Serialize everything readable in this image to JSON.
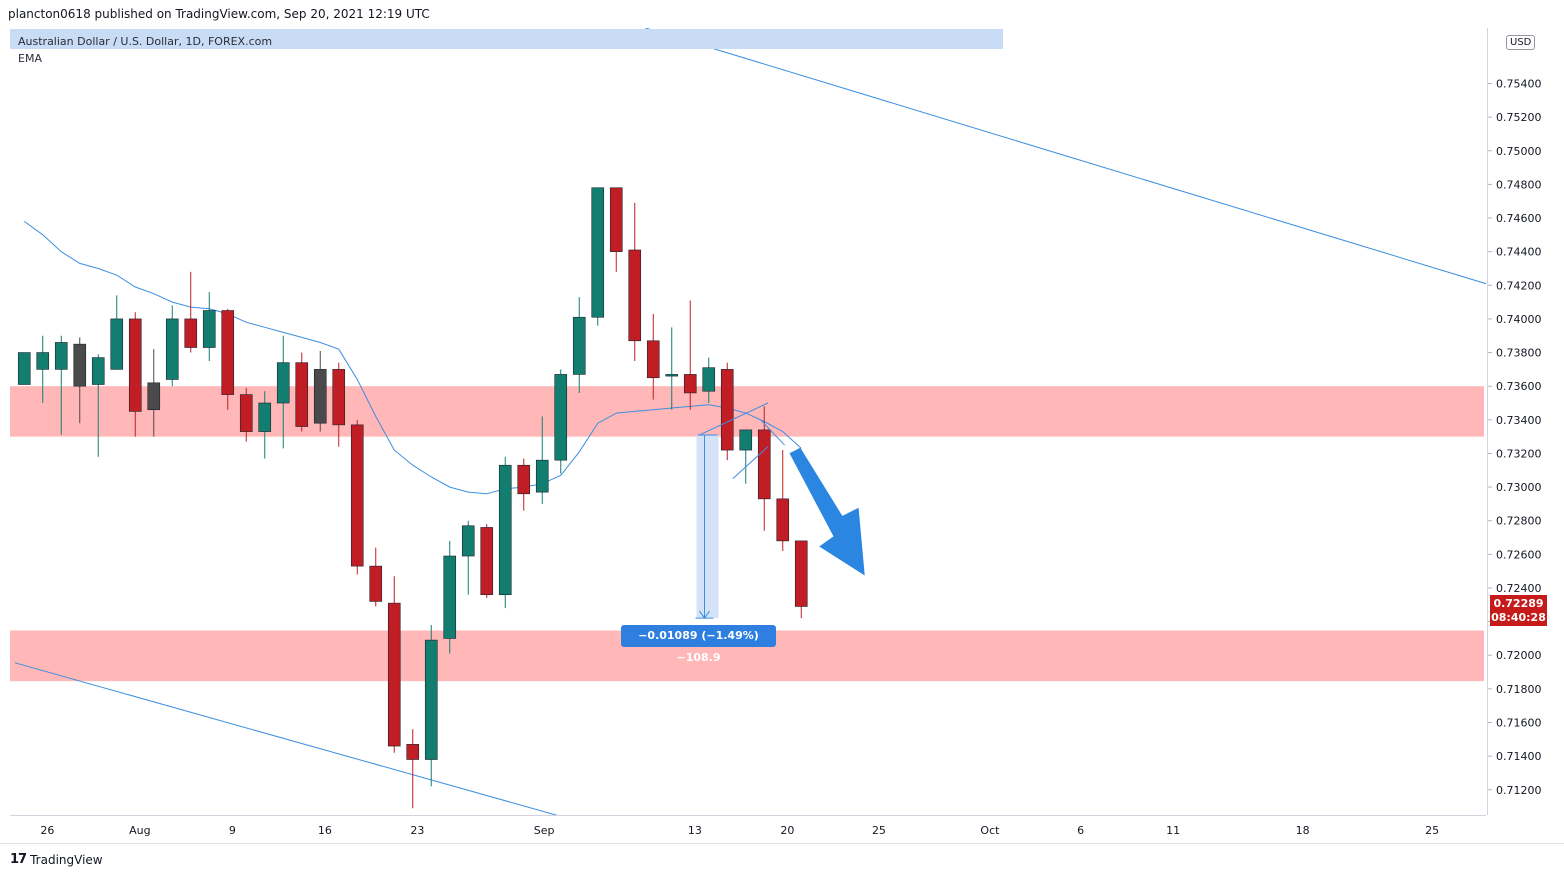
{
  "header": {
    "published_line": "plancton0618 published on TradingView.com, Sep 20, 2021 12:19 UTC"
  },
  "legend": {
    "symbol": "Australian Dollar / U.S. Dollar, 1D, FOREX.com",
    "indicator": "EMA"
  },
  "price_axis": {
    "currency": "USD",
    "last_price": "0.72289",
    "countdown": "08:40:28"
  },
  "measure_label": "−0.01089 (−1.49%) −108.9",
  "footer": {
    "brand": "TradingView"
  },
  "colors": {
    "up": "#127e70",
    "down": "#c01d24",
    "neutral": "#4a4a4a",
    "ema": "#3d8ee0",
    "zone": "#ffb7b7",
    "arrow": "#2a86e0"
  },
  "chart_data": {
    "type": "candlestick",
    "title": "Australian Dollar / U.S. Dollar, 1D, FOREX.com",
    "ylim": [
      0.7105,
      0.7573
    ],
    "y_ticks": [
      "0.71200",
      "0.71400",
      "0.71600",
      "0.71800",
      "0.72000",
      "0.72200",
      "0.72400",
      "0.72600",
      "0.72800",
      "0.73000",
      "0.73200",
      "0.73400",
      "0.73600",
      "0.73800",
      "0.74000",
      "0.74200",
      "0.74400",
      "0.74600",
      "0.74800",
      "0.75000",
      "0.75200",
      "0.75400"
    ],
    "x_ticks": [
      {
        "label": "26",
        "slot": 1.75
      },
      {
        "label": "Aug",
        "slot": 6.75
      },
      {
        "label": "9",
        "slot": 11.75
      },
      {
        "label": "16",
        "slot": 16.75
      },
      {
        "label": "23",
        "slot": 21.75
      },
      {
        "label": "Sep",
        "slot": 28.6
      },
      {
        "label": "13",
        "slot": 36.75
      },
      {
        "label": "20",
        "slot": 41.75
      },
      {
        "label": "25",
        "slot": 46.7
      },
      {
        "label": "Oct",
        "slot": 52.7
      },
      {
        "label": "6",
        "slot": 57.6
      },
      {
        "label": "11",
        "slot": 62.6
      },
      {
        "label": "18",
        "slot": 69.6
      },
      {
        "label": "25",
        "slot": 76.6
      }
    ],
    "candles": [
      {
        "o": 0.7361,
        "h": 0.738,
        "l": 0.7361,
        "c": 0.738
      },
      {
        "o": 0.737,
        "h": 0.739,
        "l": 0.735,
        "c": 0.738
      },
      {
        "o": 0.737,
        "h": 0.739,
        "l": 0.7331,
        "c": 0.7386
      },
      {
        "o": 0.7385,
        "h": 0.7389,
        "l": 0.7338,
        "c": 0.736
      },
      {
        "o": 0.7361,
        "h": 0.7379,
        "l": 0.7318,
        "c": 0.7377
      },
      {
        "o": 0.737,
        "h": 0.7414,
        "l": 0.737,
        "c": 0.74
      },
      {
        "o": 0.74,
        "h": 0.7404,
        "l": 0.733,
        "c": 0.7345
      },
      {
        "o": 0.7346,
        "h": 0.7382,
        "l": 0.733,
        "c": 0.7362
      },
      {
        "o": 0.7364,
        "h": 0.7408,
        "l": 0.736,
        "c": 0.74
      },
      {
        "o": 0.74,
        "h": 0.7428,
        "l": 0.738,
        "c": 0.7383
      },
      {
        "o": 0.7383,
        "h": 0.7416,
        "l": 0.7375,
        "c": 0.7405
      },
      {
        "o": 0.7405,
        "h": 0.7406,
        "l": 0.7346,
        "c": 0.7355
      },
      {
        "o": 0.7355,
        "h": 0.7359,
        "l": 0.7327,
        "c": 0.7333
      },
      {
        "o": 0.7333,
        "h": 0.7357,
        "l": 0.7317,
        "c": 0.735
      },
      {
        "o": 0.735,
        "h": 0.739,
        "l": 0.7323,
        "c": 0.7374
      },
      {
        "o": 0.7374,
        "h": 0.738,
        "l": 0.7333,
        "c": 0.7336
      },
      {
        "o": 0.7338,
        "h": 0.7381,
        "l": 0.7333,
        "c": 0.737
      },
      {
        "o": 0.737,
        "h": 0.7374,
        "l": 0.7324,
        "c": 0.7337
      },
      {
        "o": 0.7337,
        "h": 0.734,
        "l": 0.7248,
        "c": 0.7253
      },
      {
        "o": 0.7253,
        "h": 0.7264,
        "l": 0.7229,
        "c": 0.7232
      },
      {
        "o": 0.7231,
        "h": 0.7247,
        "l": 0.7142,
        "c": 0.7146
      },
      {
        "o": 0.7147,
        "h": 0.7156,
        "l": 0.7109,
        "c": 0.7138
      },
      {
        "o": 0.7138,
        "h": 0.7218,
        "l": 0.7122,
        "c": 0.7209
      },
      {
        "o": 0.721,
        "h": 0.7268,
        "l": 0.7201,
        "c": 0.7259
      },
      {
        "o": 0.7259,
        "h": 0.728,
        "l": 0.7236,
        "c": 0.7277
      },
      {
        "o": 0.7276,
        "h": 0.7278,
        "l": 0.7234,
        "c": 0.7236
      },
      {
        "o": 0.7236,
        "h": 0.7318,
        "l": 0.7228,
        "c": 0.7313
      },
      {
        "o": 0.7313,
        "h": 0.7317,
        "l": 0.7286,
        "c": 0.7296
      },
      {
        "o": 0.7297,
        "h": 0.7342,
        "l": 0.729,
        "c": 0.7316
      },
      {
        "o": 0.7316,
        "h": 0.737,
        "l": 0.7308,
        "c": 0.7367
      },
      {
        "o": 0.7367,
        "h": 0.7413,
        "l": 0.7356,
        "c": 0.7401
      },
      {
        "o": 0.7401,
        "h": 0.7478,
        "l": 0.7396,
        "c": 0.7478
      },
      {
        "o": 0.7478,
        "h": 0.7478,
        "l": 0.7428,
        "c": 0.744
      },
      {
        "o": 0.7441,
        "h": 0.7469,
        "l": 0.7375,
        "c": 0.7387
      },
      {
        "o": 0.7387,
        "h": 0.7403,
        "l": 0.7352,
        "c": 0.7365
      },
      {
        "o": 0.7366,
        "h": 0.7395,
        "l": 0.7346,
        "c": 0.7367
      },
      {
        "o": 0.7367,
        "h": 0.7411,
        "l": 0.7346,
        "c": 0.7356
      },
      {
        "o": 0.7357,
        "h": 0.7377,
        "l": 0.735,
        "c": 0.7371
      },
      {
        "o": 0.737,
        "h": 0.7374,
        "l": 0.7316,
        "c": 0.7322
      },
      {
        "o": 0.7322,
        "h": 0.7334,
        "l": 0.7302,
        "c": 0.7334
      },
      {
        "o": 0.7334,
        "h": 0.7348,
        "l": 0.7274,
        "c": 0.7293
      },
      {
        "o": 0.7293,
        "h": 0.7322,
        "l": 0.7262,
        "c": 0.7268
      },
      {
        "o": 0.7268,
        "h": 0.7268,
        "l": 0.7222,
        "c": 0.7229
      }
    ],
    "neutral_indices": [
      3,
      7,
      16
    ],
    "ema": [
      0.7458,
      0.745,
      0.744,
      0.7433,
      0.743,
      0.7426,
      0.7419,
      0.7415,
      0.741,
      0.7407,
      0.7406,
      0.7403,
      0.7398,
      0.7395,
      0.7392,
      0.7389,
      0.7386,
      0.7382,
      0.7364,
      0.7342,
      0.7322,
      0.7313,
      0.7306,
      0.73,
      0.7297,
      0.7296,
      0.7299,
      0.73,
      0.7302,
      0.7307,
      0.7321,
      0.7338,
      0.7344,
      0.7345,
      0.7346,
      0.7347,
      0.7348,
      0.7349,
      0.7347,
      0.7344,
      0.7339,
      0.7333,
      0.7323
    ],
    "zones": [
      {
        "top": 0.736,
        "bottom": 0.733
      },
      {
        "top": 0.72147,
        "bottom": 0.71846
      }
    ],
    "trendlines": [
      {
        "x1": 32.0,
        "y1": 0.758,
        "x2": 79.8,
        "y2": 0.742
      },
      {
        "x1": 0.0,
        "y1": 0.71955,
        "x2": 29.4,
        "y2": 0.71045
      }
    ],
    "measure": {
      "x": 37.0,
      "from": 0.7331,
      "to": 0.72221,
      "label": "−0.01089 (−1.49%) −108.9"
    },
    "channel_lines": [
      {
        "x1": 37.0,
        "y1": 0.7331,
        "x2": 40.7,
        "y2": 0.735
      },
      {
        "x1": 38.8,
        "y1": 0.7305,
        "x2": 40.7,
        "y2": 0.7324
      }
    ],
    "forecast_arrow": {
      "x1": 41.9,
      "y1": 0.732,
      "x2": 45.9,
      "y2": 0.7248
    }
  }
}
